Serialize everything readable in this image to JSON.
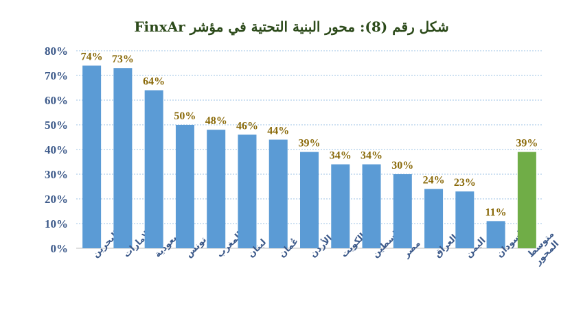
{
  "chart_data": {
    "type": "bar",
    "title": "شكل رقم (8): محور البنية التحتية في مؤشر FinxAr",
    "categories": [
      "البحرين",
      "الإمارات",
      "السعودية",
      "تونس",
      "المغرب",
      "لبنان",
      "عُمان",
      "الأردن",
      "الكويت",
      "فلسطين",
      "مصر",
      "العراق",
      "اليمن",
      "السودان",
      "متوسط المحور"
    ],
    "values": [
      74,
      73,
      64,
      50,
      48,
      46,
      44,
      39,
      34,
      34,
      30,
      24,
      23,
      11,
      39
    ],
    "data_labels": [
      "74%",
      "73%",
      "64%",
      "50%",
      "48%",
      "46%",
      "44%",
      "39%",
      "34%",
      "34%",
      "30%",
      "24%",
      "23%",
      "11%",
      "39%"
    ],
    "highlight_index": 14,
    "yticks": [
      "0%",
      "10%",
      "20%",
      "30%",
      "40%",
      "50%",
      "60%",
      "70%",
      "80%"
    ],
    "ylim": [
      0,
      80
    ],
    "xlabel": "",
    "ylabel": "",
    "grid": true,
    "colors": {
      "bar": "#5b9bd5",
      "highlight": "#70ad47",
      "grid": "#9dc3e6",
      "axis_text": "#3d5a8a",
      "data_label": "#8a6a0a",
      "title": "#2c4a1a"
    }
  }
}
